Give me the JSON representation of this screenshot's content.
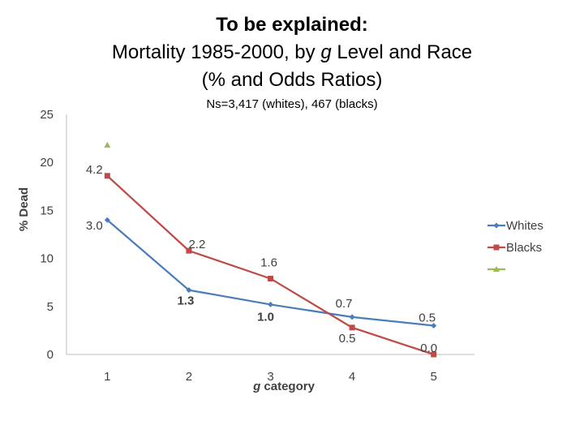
{
  "header": {
    "title_line1": "To be explained:",
    "title_line2_pre": "Mortality 1985-2000, by ",
    "title_line2_g": "g",
    "title_line2_post": " Level and Race",
    "title_line3": "(% and Odds Ratios)",
    "subtitle": "Ns=3,417 (whites), 467 (blacks)"
  },
  "chart_data": {
    "type": "line",
    "title": "Mortality 1985-2000, by g Level and Race",
    "subtitle": "Ns=3,417 (whites), 467 (blacks)",
    "xlabel_g": "g",
    "xlabel_rest": " category",
    "ylabel": "% Dead",
    "ylim": [
      0,
      25
    ],
    "yticks": [
      0,
      5,
      10,
      15,
      20,
      25
    ],
    "x": [
      1,
      2,
      3,
      4,
      5
    ],
    "grid": false,
    "legend_position": "right",
    "series": [
      {
        "name": "Whites",
        "color": "#4a7ebb",
        "marker": "diamond",
        "values": [
          14.0,
          6.7,
          5.2,
          3.9,
          3.0
        ],
        "labels": [
          "3.0",
          "1.3",
          "1.0",
          "0.7",
          "0.5"
        ]
      },
      {
        "name": "Blacks",
        "color": "#be4b48",
        "marker": "square",
        "values": [
          18.6,
          10.8,
          7.9,
          2.8,
          0.0
        ],
        "labels": [
          "4.2",
          "2.2",
          "1.6",
          "0.5",
          "0.0"
        ]
      },
      {
        "name": "",
        "color": "#9bbb59",
        "marker": "triangle",
        "values": [
          21.8,
          null,
          null,
          null,
          null
        ],
        "labels": []
      }
    ]
  }
}
